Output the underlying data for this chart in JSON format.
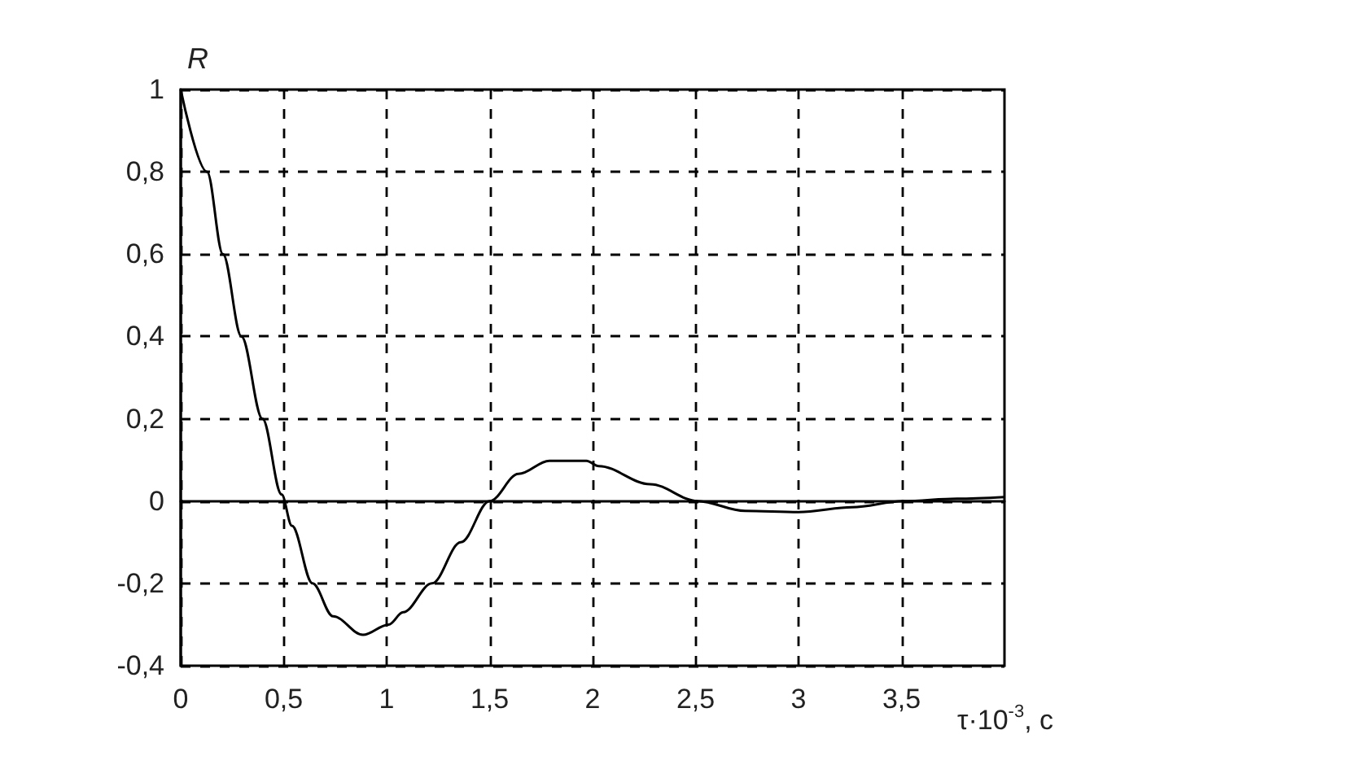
{
  "chart_data": {
    "type": "line",
    "xlabel": "τ·10$^{-3}$, c",
    "ylabel": "R",
    "x": [
      0,
      0.128,
      0.205,
      0.295,
      0.397,
      0.49,
      0.54,
      0.64,
      0.74,
      0.885,
      1.01,
      1.08,
      1.22,
      1.36,
      1.5,
      1.64,
      1.79,
      1.97,
      2.03,
      2.28,
      2.51,
      2.74,
      3.0,
      3.26,
      3.51,
      3.77,
      4.0
    ],
    "series": [
      {
        "color": "#000000",
        "values": [
          1,
          0.8,
          0.6,
          0.4,
          0.2,
          0.016,
          -0.06,
          -0.2,
          -0.28,
          -0.325,
          -0.3,
          -0.27,
          -0.2,
          -0.1,
          0,
          0.066,
          0.098,
          0.098,
          0.085,
          0.041,
          0,
          -0.024,
          -0.027,
          -0.015,
          0,
          0.006,
          0.01
        ]
      }
    ],
    "xlim": [
      0,
      4
    ],
    "xticks": [
      0,
      {
        "value": 0.5,
        "label": "0,5"
      },
      1,
      {
        "value": 1.5,
        "label": "1,5"
      },
      2,
      {
        "value": 2.5,
        "label": "2,5"
      },
      3,
      {
        "value": 3.5,
        "label": "3,5"
      }
    ],
    "ylim": [
      -0.4,
      1
    ],
    "yticks": [
      {
        "value": -0.4,
        "label": "-0,4"
      },
      {
        "value": -0.2,
        "label": "-0,2"
      },
      0,
      {
        "value": 0.2,
        "label": "0,2"
      },
      {
        "value": 0.4,
        "label": "0,4"
      },
      {
        "value": 0.6,
        "label": "0,6"
      },
      {
        "value": 0.8,
        "label": "0,8"
      },
      1
    ],
    "grid": true
  }
}
